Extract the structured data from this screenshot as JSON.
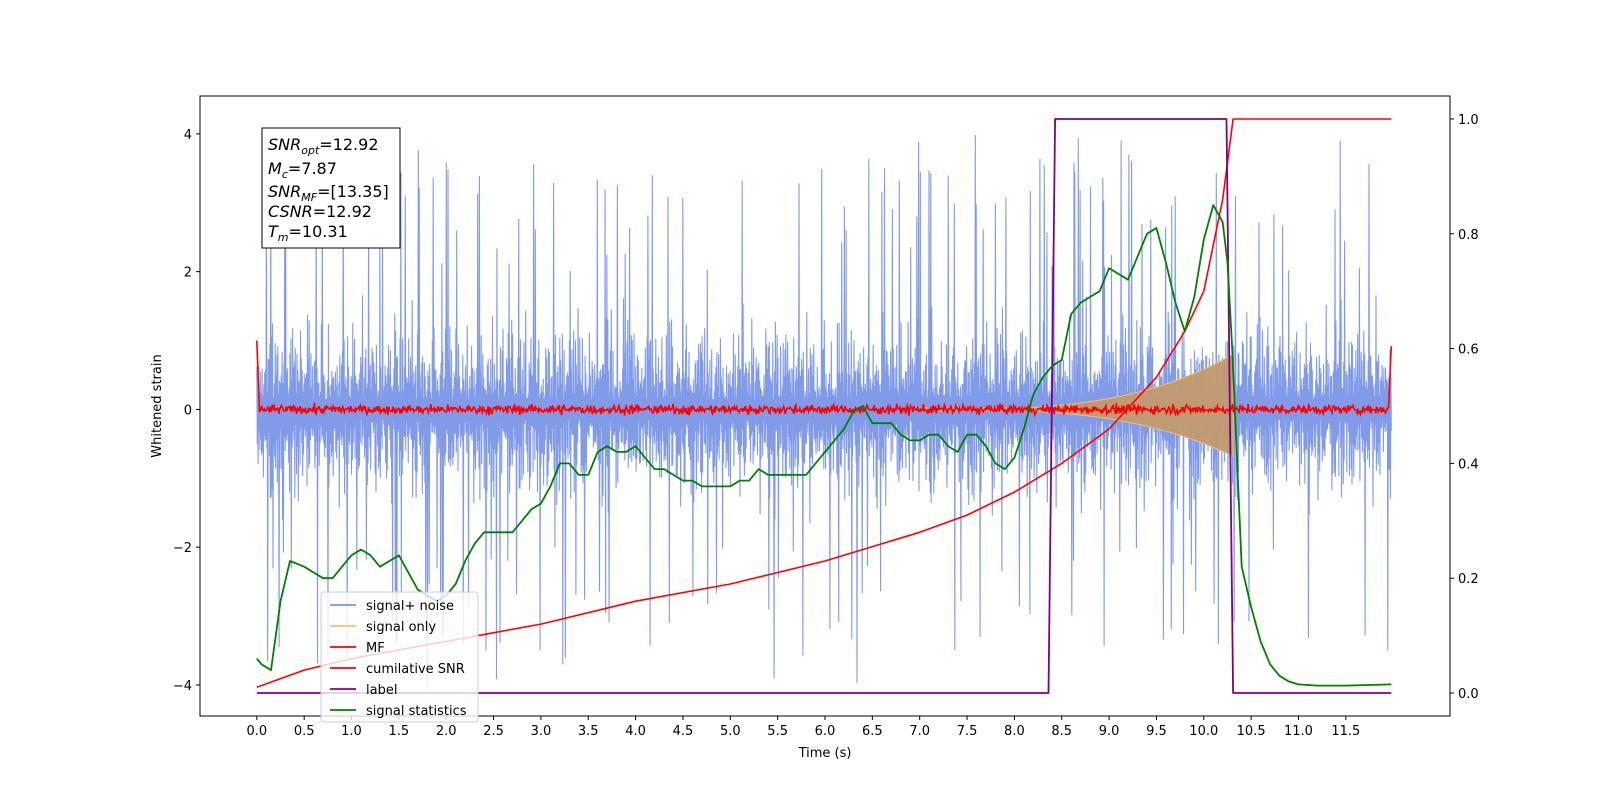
{
  "chart_data": {
    "type": "line",
    "title": "",
    "xlabel": "Time (s)",
    "ylabel": "Whitened strain",
    "xlim": [
      -0.6,
      12.6
    ],
    "ylim": [
      -4.45,
      4.55
    ],
    "y2lim": [
      -0.04,
      1.04
    ],
    "xticks": [
      "0.0",
      "0.5",
      "1.0",
      "1.5",
      "2.0",
      "2.5",
      "3.0",
      "3.5",
      "4.0",
      "4.5",
      "5.0",
      "5.5",
      "6.0",
      "6.5",
      "7.0",
      "7.5",
      "8.0",
      "8.5",
      "9.0",
      "9.5",
      "10.0",
      "10.5",
      "11.0",
      "11.5"
    ],
    "yticks": [
      "-4",
      "-2",
      "0",
      "2",
      "4"
    ],
    "y2ticks": [
      "0.0",
      "0.2",
      "0.4",
      "0.6",
      "0.8",
      "1.0"
    ],
    "grid": false,
    "legend_position": "lower-left",
    "annotations": {
      "snr_opt_base": "SNR",
      "snr_opt_sub": "opt",
      "snr_opt_value": "=12.92",
      "mc_base": "M",
      "mc_sub": "c",
      "mc_value": "=7.87",
      "snr_mf_base": "SNR",
      "snr_mf_sub": "MF",
      "snr_mf_value": "=[13.35]",
      "csnr_base": "CSNR",
      "csnr_value": "=12.92",
      "tm_base": "T",
      "tm_sub": "m",
      "tm_value": "=10.31"
    },
    "series": [
      {
        "name": "signal+ noise",
        "color": "#7a96e8",
        "axis": "left",
        "noise_band": [
          -1.4,
          1.4
        ],
        "x_range": [
          0.0,
          11.98
        ]
      },
      {
        "name": "signal only",
        "color": "#f5c26b",
        "axis": "left",
        "chirp_end": 10.31,
        "peak_amplitude": 0.8
      },
      {
        "name": "MF",
        "color": "#ff0000",
        "axis": "left",
        "noise_band": [
          -0.12,
          0.12
        ],
        "start_value": 1.0,
        "end_value": 0.92
      },
      {
        "name": "cumilative SNR",
        "color": "#ff0000",
        "axis": "right",
        "x": [
          0.0,
          0.5,
          1.0,
          2.0,
          3.0,
          4.0,
          5.0,
          6.0,
          7.0,
          7.5,
          8.0,
          8.5,
          9.0,
          9.5,
          9.8,
          10.0,
          10.2,
          10.31,
          11.98
        ],
        "y": [
          0.01,
          0.04,
          0.06,
          0.09,
          0.12,
          0.16,
          0.19,
          0.23,
          0.28,
          0.31,
          0.35,
          0.4,
          0.46,
          0.55,
          0.63,
          0.7,
          0.86,
          1.0,
          1.0
        ]
      },
      {
        "name": "label",
        "color": "#800080",
        "axis": "right",
        "x": [
          0.0,
          8.36,
          8.43,
          10.24,
          10.31,
          11.98
        ],
        "y": [
          0.0,
          0.0,
          1.0,
          1.0,
          0.0,
          0.0
        ]
      },
      {
        "name": "signal statistics",
        "color": "#008000",
        "axis": "right",
        "x": [
          0.0,
          0.05,
          0.15,
          0.25,
          0.35,
          0.5,
          0.6,
          0.7,
          0.8,
          0.9,
          1.0,
          1.1,
          1.2,
          1.3,
          1.4,
          1.5,
          1.6,
          1.7,
          1.8,
          1.9,
          2.0,
          2.1,
          2.2,
          2.3,
          2.4,
          2.5,
          2.6,
          2.7,
          2.8,
          2.9,
          3.0,
          3.1,
          3.2,
          3.3,
          3.4,
          3.5,
          3.6,
          3.7,
          3.8,
          3.9,
          4.0,
          4.1,
          4.2,
          4.3,
          4.4,
          4.5,
          4.6,
          4.7,
          4.8,
          4.9,
          5.0,
          5.1,
          5.2,
          5.3,
          5.4,
          5.5,
          5.6,
          5.7,
          5.8,
          5.9,
          6.0,
          6.1,
          6.2,
          6.3,
          6.4,
          6.5,
          6.6,
          6.7,
          6.8,
          6.9,
          7.0,
          7.1,
          7.2,
          7.3,
          7.4,
          7.5,
          7.6,
          7.7,
          7.8,
          7.9,
          8.0,
          8.1,
          8.2,
          8.3,
          8.4,
          8.5,
          8.6,
          8.7,
          8.8,
          8.9,
          9.0,
          9.1,
          9.2,
          9.3,
          9.4,
          9.5,
          9.6,
          9.7,
          9.8,
          9.9,
          10.0,
          10.1,
          10.2,
          10.25,
          10.3,
          10.4,
          10.5,
          10.6,
          10.7,
          10.8,
          10.9,
          11.0,
          11.2,
          11.5,
          11.98
        ],
        "y": [
          0.06,
          0.05,
          0.04,
          0.16,
          0.23,
          0.22,
          0.21,
          0.2,
          0.2,
          0.22,
          0.24,
          0.25,
          0.24,
          0.22,
          0.23,
          0.24,
          0.21,
          0.18,
          0.17,
          0.16,
          0.17,
          0.19,
          0.23,
          0.26,
          0.28,
          0.28,
          0.28,
          0.28,
          0.3,
          0.32,
          0.33,
          0.36,
          0.4,
          0.4,
          0.38,
          0.38,
          0.42,
          0.43,
          0.42,
          0.42,
          0.43,
          0.41,
          0.39,
          0.39,
          0.38,
          0.37,
          0.37,
          0.36,
          0.36,
          0.36,
          0.36,
          0.37,
          0.37,
          0.39,
          0.38,
          0.38,
          0.38,
          0.38,
          0.38,
          0.4,
          0.42,
          0.44,
          0.46,
          0.49,
          0.5,
          0.47,
          0.47,
          0.47,
          0.45,
          0.44,
          0.44,
          0.45,
          0.45,
          0.43,
          0.42,
          0.45,
          0.45,
          0.43,
          0.4,
          0.39,
          0.41,
          0.46,
          0.52,
          0.55,
          0.57,
          0.58,
          0.66,
          0.68,
          0.69,
          0.7,
          0.74,
          0.73,
          0.72,
          0.76,
          0.8,
          0.81,
          0.75,
          0.68,
          0.63,
          0.69,
          0.79,
          0.85,
          0.82,
          0.75,
          0.6,
          0.22,
          0.15,
          0.09,
          0.05,
          0.03,
          0.02,
          0.015,
          0.013,
          0.013,
          0.015
        ]
      }
    ]
  }
}
